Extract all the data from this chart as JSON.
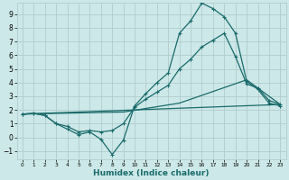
{
  "xlabel": "Humidex (Indice chaleur)",
  "xlim": [
    -0.5,
    23.5
  ],
  "ylim": [
    -1.6,
    9.8
  ],
  "xticks": [
    0,
    1,
    2,
    3,
    4,
    5,
    6,
    7,
    8,
    9,
    10,
    11,
    12,
    13,
    14,
    15,
    16,
    17,
    18,
    19,
    20,
    21,
    22,
    23
  ],
  "yticks": [
    -1,
    0,
    1,
    2,
    3,
    4,
    5,
    6,
    7,
    8,
    9
  ],
  "bg_color": "#cde8e8",
  "grid_color": "#b0cccc",
  "line_color": "#1a6b6b",
  "line1_x": [
    0,
    1,
    2,
    3,
    4,
    5,
    6,
    7,
    8,
    9,
    10,
    11,
    12,
    13,
    14,
    15,
    16,
    17,
    18,
    19,
    20,
    21,
    22,
    23
  ],
  "line1_y": [
    1.7,
    1.75,
    1.6,
    1.0,
    0.6,
    0.2,
    0.4,
    -0.15,
    -1.25,
    -0.2,
    2.3,
    3.2,
    4.0,
    4.7,
    7.6,
    8.5,
    9.8,
    9.4,
    8.8,
    7.6,
    4.1,
    3.5,
    2.5,
    2.3
  ],
  "line2_x": [
    0,
    1,
    2,
    3,
    4,
    5,
    6,
    7,
    8,
    9,
    10,
    11,
    12,
    13,
    14,
    15,
    16,
    17,
    18,
    19,
    20,
    21,
    22,
    23
  ],
  "line2_y": [
    1.7,
    1.75,
    1.6,
    1.0,
    0.8,
    0.4,
    0.5,
    0.4,
    0.5,
    1.0,
    2.2,
    2.8,
    3.3,
    3.8,
    5.0,
    5.7,
    6.6,
    7.1,
    7.6,
    5.9,
    3.9,
    3.6,
    2.7,
    2.4
  ],
  "line3_x": [
    0,
    9,
    14,
    20,
    23
  ],
  "line3_y": [
    1.7,
    1.85,
    2.5,
    4.2,
    2.4
  ],
  "line4_x": [
    0,
    23
  ],
  "line4_y": [
    1.7,
    2.4
  ]
}
